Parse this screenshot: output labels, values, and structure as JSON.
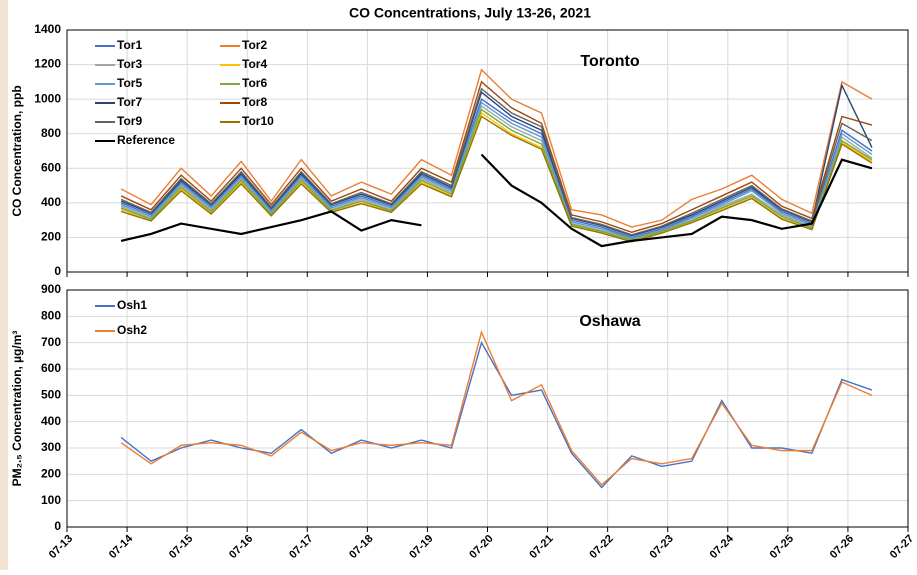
{
  "chart_data": [
    {
      "type": "line",
      "title": "CO Concentrations, July 13-26, 2021",
      "y_label": "CO Concentration, ppb",
      "annotation": "Toronto",
      "x": [
        13.9,
        14.4,
        14.9,
        15.4,
        15.9,
        16.4,
        16.9,
        17.4,
        17.9,
        18.4,
        18.9,
        19.4,
        19.9,
        20.4,
        20.9,
        21.4,
        21.9,
        22.4,
        22.9,
        23.4,
        23.9,
        24.4,
        24.9,
        25.4,
        25.9,
        26.4
      ],
      "xlim": [
        13,
        27
      ],
      "ylim": [
        0,
        1400
      ],
      "yticks": [
        0,
        200,
        400,
        600,
        800,
        1000,
        1200,
        1400
      ],
      "grid": true,
      "legend": "upper left",
      "series": [
        {
          "name": "Tor1",
          "color": "#4472c4",
          "values": [
            400,
            330,
            520,
            380,
            560,
            360,
            560,
            380,
            440,
            380,
            560,
            480,
            1000,
            880,
            800,
            300,
            260,
            200,
            250,
            320,
            400,
            480,
            350,
            280,
            820,
            700
          ]
        },
        {
          "name": "Tor2",
          "color": "#ed7d31",
          "values": [
            480,
            390,
            600,
            440,
            640,
            410,
            650,
            440,
            520,
            450,
            650,
            560,
            1170,
            1000,
            920,
            360,
            330,
            260,
            300,
            420,
            480,
            560,
            420,
            340,
            1100,
            1000
          ]
        },
        {
          "name": "Tor3",
          "color": "#a5a5a5",
          "values": [
            380,
            310,
            500,
            360,
            540,
            340,
            540,
            360,
            420,
            360,
            540,
            460,
            960,
            840,
            760,
            280,
            240,
            190,
            240,
            300,
            380,
            450,
            330,
            260,
            780,
            660
          ]
        },
        {
          "name": "Tor4",
          "color": "#ffc000",
          "values": [
            360,
            300,
            480,
            340,
            520,
            330,
            520,
            350,
            400,
            350,
            520,
            440,
            920,
            800,
            720,
            270,
            230,
            180,
            230,
            290,
            360,
            430,
            310,
            250,
            750,
            640
          ]
        },
        {
          "name": "Tor5",
          "color": "#5b9bd5",
          "values": [
            390,
            320,
            510,
            370,
            550,
            350,
            550,
            370,
            430,
            370,
            550,
            470,
            980,
            860,
            780,
            290,
            250,
            195,
            245,
            310,
            390,
            470,
            340,
            270,
            800,
            680
          ]
        },
        {
          "name": "Tor6",
          "color": "#70ad47",
          "values": [
            370,
            305,
            490,
            350,
            530,
            335,
            530,
            355,
            410,
            355,
            530,
            450,
            940,
            820,
            740,
            275,
            235,
            185,
            235,
            295,
            370,
            440,
            320,
            255,
            760,
            650
          ]
        },
        {
          "name": "Tor7",
          "color": "#264478",
          "values": [
            410,
            340,
            530,
            390,
            570,
            370,
            570,
            390,
            450,
            390,
            570,
            490,
            1040,
            900,
            820,
            310,
            270,
            210,
            260,
            330,
            410,
            490,
            360,
            290,
            1080,
            720
          ]
        },
        {
          "name": "Tor8",
          "color": "#9e480e",
          "values": [
            440,
            360,
            560,
            410,
            600,
            390,
            600,
            410,
            480,
            410,
            600,
            520,
            1100,
            950,
            860,
            330,
            290,
            230,
            280,
            360,
            440,
            520,
            380,
            310,
            900,
            850
          ]
        },
        {
          "name": "Tor9",
          "color": "#636363",
          "values": [
            420,
            345,
            540,
            395,
            580,
            375,
            580,
            395,
            460,
            395,
            580,
            500,
            1060,
            920,
            840,
            315,
            275,
            215,
            265,
            340,
            420,
            500,
            365,
            295,
            860,
            760
          ]
        },
        {
          "name": "Tor10",
          "color": "#997300",
          "values": [
            350,
            295,
            470,
            335,
            510,
            325,
            510,
            345,
            395,
            345,
            510,
            435,
            900,
            790,
            710,
            265,
            225,
            175,
            225,
            285,
            355,
            425,
            305,
            245,
            740,
            630
          ]
        },
        {
          "name": "Reference",
          "color": "#000000",
          "values": [
            180,
            220,
            280,
            250,
            220,
            260,
            300,
            350,
            240,
            300,
            270,
            null,
            680,
            500,
            400,
            250,
            150,
            180,
            200,
            220,
            320,
            300,
            250,
            280,
            650,
            600
          ]
        }
      ]
    },
    {
      "type": "line",
      "y_label": "PM₂.₅ Concentration, µg/m³",
      "annotation": "Oshawa",
      "x": [
        13.9,
        14.4,
        14.9,
        15.4,
        15.9,
        16.4,
        16.9,
        17.4,
        17.9,
        18.4,
        18.9,
        19.4,
        19.9,
        20.4,
        20.9,
        21.4,
        21.9,
        22.4,
        22.9,
        23.4,
        23.9,
        24.4,
        24.9,
        25.4,
        25.9,
        26.4
      ],
      "xlim": [
        13,
        27
      ],
      "ylim": [
        0,
        900
      ],
      "yticks": [
        0,
        100,
        200,
        300,
        400,
        500,
        600,
        700,
        800,
        900
      ],
      "grid": true,
      "legend": "upper left",
      "xticks": [
        {
          "value": 13,
          "label": "07-13"
        },
        {
          "value": 14,
          "label": "07-14"
        },
        {
          "value": 15,
          "label": "07-15"
        },
        {
          "value": 16,
          "label": "07-16"
        },
        {
          "value": 17,
          "label": "07-17"
        },
        {
          "value": 18,
          "label": "07-18"
        },
        {
          "value": 19,
          "label": "07-19"
        },
        {
          "value": 20,
          "label": "07-20"
        },
        {
          "value": 21,
          "label": "07-21"
        },
        {
          "value": 22,
          "label": "07-22"
        },
        {
          "value": 23,
          "label": "07-23"
        },
        {
          "value": 24,
          "label": "07-24"
        },
        {
          "value": 25,
          "label": "07-25"
        },
        {
          "value": 26,
          "label": "07-26"
        },
        {
          "value": 27,
          "label": "07-27"
        }
      ],
      "series": [
        {
          "name": "Osh1",
          "color": "#4472c4",
          "values": [
            340,
            250,
            300,
            330,
            300,
            280,
            370,
            280,
            330,
            300,
            330,
            300,
            700,
            500,
            520,
            280,
            150,
            270,
            230,
            250,
            480,
            300,
            300,
            280,
            560,
            520
          ]
        },
        {
          "name": "Osh2",
          "color": "#ed7d31",
          "values": [
            320,
            240,
            310,
            320,
            310,
            270,
            360,
            290,
            320,
            310,
            320,
            310,
            740,
            480,
            540,
            290,
            160,
            260,
            240,
            260,
            470,
            310,
            290,
            290,
            550,
            500
          ]
        }
      ]
    }
  ]
}
